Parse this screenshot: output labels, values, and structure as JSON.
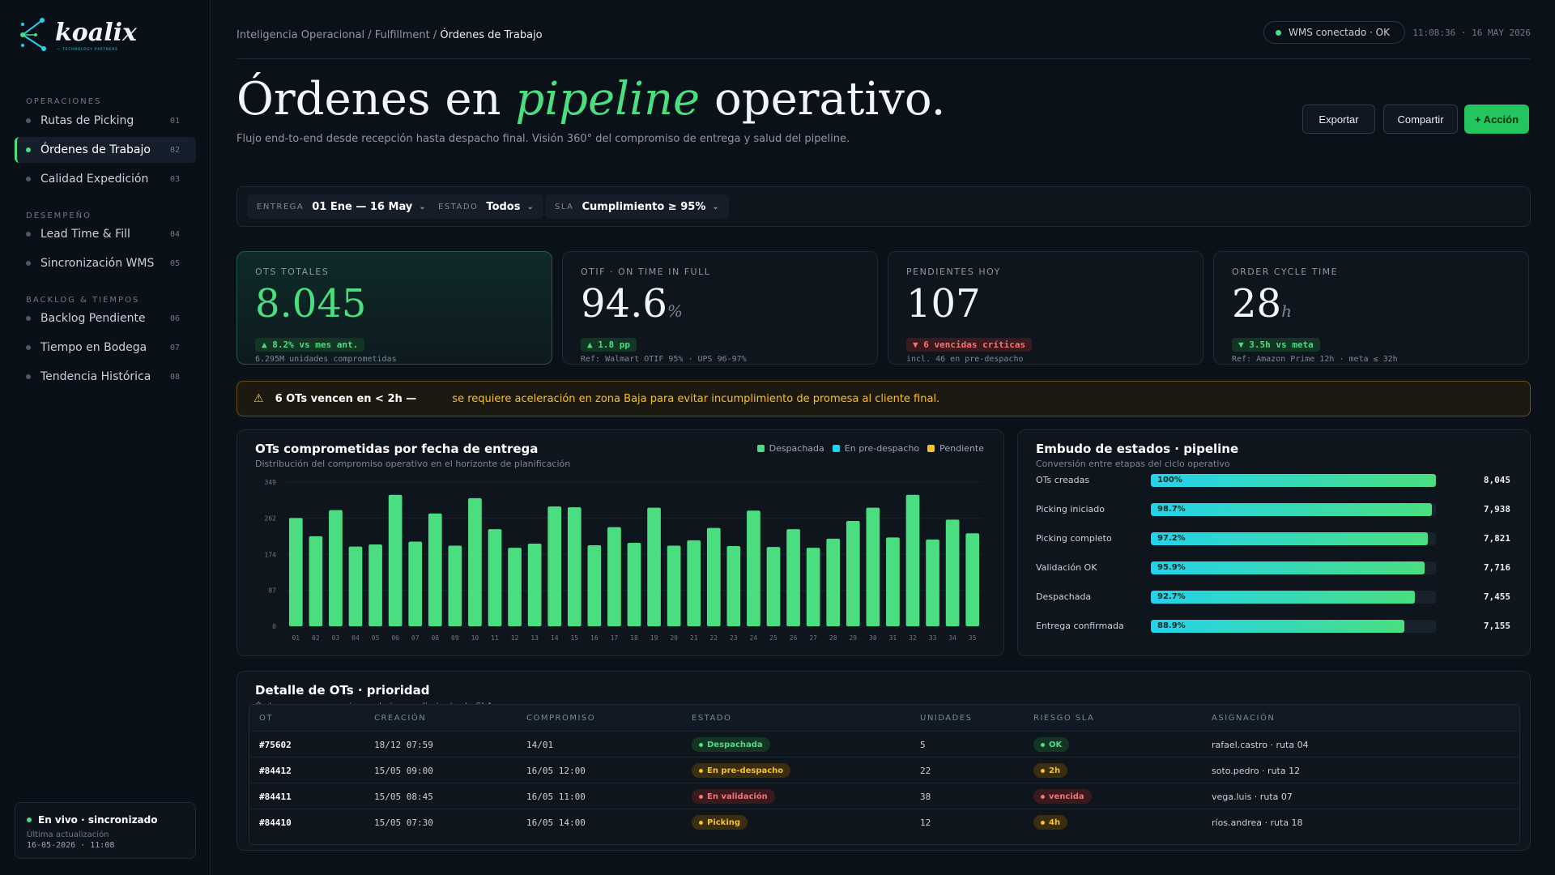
{
  "brand": {
    "name": "koalix",
    "tagline": "— TECHNOLOGY PARTNERS"
  },
  "sidebar": {
    "groups": [
      {
        "label": "OPERACIONES",
        "items": [
          {
            "label": "Rutas de Picking",
            "num": "01"
          },
          {
            "label": "Órdenes de Trabajo",
            "num": "02",
            "active": true
          },
          {
            "label": "Calidad Expedición",
            "num": "03"
          }
        ]
      },
      {
        "label": "DESEMPEÑO",
        "items": [
          {
            "label": "Lead Time & Fill",
            "num": "04"
          },
          {
            "label": "Sincronización WMS",
            "num": "05"
          }
        ]
      },
      {
        "label": "BACKLOG & TIEMPOS",
        "items": [
          {
            "label": "Backlog Pendiente",
            "num": "06"
          },
          {
            "label": "Tiempo en Bodega",
            "num": "07"
          },
          {
            "label": "Tendencia Histórica",
            "num": "08"
          }
        ]
      }
    ],
    "live": {
      "title": "En vivo · sincronizado",
      "sub": "Última actualización",
      "ts": "16-05-2026 · 11:08"
    }
  },
  "header": {
    "crumb_1": "Inteligencia Operacional / Fulfillment / ",
    "crumb_current": "Órdenes de Trabajo",
    "connection": "WMS conectado · OK",
    "clock": "11:08:36 · 16 MAY 2026",
    "title_a": "Órdenes en ",
    "title_hl": "pipeline",
    "title_b": " operativo.",
    "subtitle": "Flujo end-to-end desde recepción hasta despacho final. Visión 360° del compromiso de entrega y salud del pipeline.",
    "btn_export": "Exportar",
    "btn_share": "Compartir",
    "btn_action": "+ Acción"
  },
  "filters": [
    {
      "key": "ENTREGA",
      "value": "01 Ene — 16 May"
    },
    {
      "key": "ESTADO",
      "value": "Todos"
    },
    {
      "key": "SLA",
      "value": "Cumplimiento ≥ 95%"
    }
  ],
  "kpis": [
    {
      "label": "OTS TOTALES",
      "value": "8.045",
      "unit": "",
      "delta": "▲ 8.2% vs mes ant.",
      "dir": "up",
      "note": "6.295M unidades comprometidas"
    },
    {
      "label": "OTIF · ON TIME IN FULL",
      "value": "94.6",
      "unit": "%",
      "delta": "▲ 1.8 pp",
      "dir": "up",
      "note": "Ref: Walmart OTIF 95% · UPS 96-97%"
    },
    {
      "label": "PENDIENTES HOY",
      "value": "107",
      "unit": "",
      "delta": "▼ 6 vencidas críticas",
      "dir": "down",
      "note": "incl. 46 en pre-despacho"
    },
    {
      "label": "ORDER CYCLE TIME",
      "value": "28",
      "unit": "h",
      "delta": "▼ 3.5h vs meta",
      "dir": "up",
      "note": "Ref: Amazon Prime 12h · meta ≤ 32h"
    }
  ],
  "alert": {
    "bold": "6 OTs vencen en < 2h —",
    "text": "se requiere aceleración en zona Baja para evitar incumplimiento de promesa al cliente final."
  },
  "bar_panel": {
    "title": "OTs comprometidas por fecha de entrega",
    "subtitle": "Distribución del compromiso operativo en el horizonte de planificación",
    "legend": [
      {
        "name": "Despachada",
        "color": "#4ade80"
      },
      {
        "name": "En pre-despacho",
        "color": "#22d3ee"
      },
      {
        "name": "Pendiente",
        "color": "#fbbf24"
      }
    ]
  },
  "chart_data": {
    "type": "bar",
    "categories": [
      "01",
      "02",
      "03",
      "04",
      "05",
      "06",
      "07",
      "08",
      "09",
      "10",
      "11",
      "12",
      "13",
      "14",
      "15",
      "16",
      "17",
      "18",
      "19",
      "20",
      "21",
      "22",
      "23",
      "24",
      "25",
      "26",
      "27",
      "28",
      "29",
      "30",
      "31",
      "32",
      "33",
      "34",
      "35"
    ],
    "series": [
      {
        "name": "Despachada",
        "color": "#4ade80",
        "values": [
          262,
          218,
          281,
          193,
          198,
          318,
          205,
          273,
          195,
          310,
          235,
          190,
          200,
          290,
          288,
          196,
          240,
          202,
          287,
          195,
          208,
          238,
          194,
          280,
          192,
          235,
          190,
          212,
          255,
          287,
          215,
          318,
          210,
          258,
          225
        ]
      }
    ],
    "yticks": [
      0,
      87,
      174,
      262,
      349
    ],
    "ylim": [
      0,
      349
    ]
  },
  "funnel": {
    "title": "Embudo de estados · pipeline",
    "subtitle": "Conversión entre etapas del ciclo operativo",
    "stages": [
      {
        "label": "OTs creadas",
        "pct": 100,
        "pct_label": "100%",
        "count": "8,045"
      },
      {
        "label": "Picking iniciado",
        "pct": 98.7,
        "pct_label": "98.7%",
        "count": "7,938"
      },
      {
        "label": "Picking completo",
        "pct": 97.2,
        "pct_label": "97.2%",
        "count": "7,821"
      },
      {
        "label": "Validación OK",
        "pct": 95.9,
        "pct_label": "95.9%",
        "count": "7,716"
      },
      {
        "label": "Despachada",
        "pct": 92.7,
        "pct_label": "92.7%",
        "count": "7,455"
      },
      {
        "label": "Entrega confirmada",
        "pct": 88.9,
        "pct_label": "88.9%",
        "count": "7,155"
      }
    ]
  },
  "table": {
    "title": "Detalle de OTs · prioridad",
    "subtitle": "Órdenes con mayor riesgo de incumplimiento de SLA",
    "headers": [
      "OT",
      "CREACIÓN",
      "COMPROMISO",
      "ESTADO",
      "UNIDADES",
      "RIESGO SLA",
      "ASIGNACIÓN"
    ],
    "rows": [
      {
        "ot": "#75602",
        "creacion": "18/12 07:59",
        "compromiso": "14/01",
        "estado": "Despachada",
        "estado_tone": "green",
        "unidades": "5",
        "riesgo": "OK",
        "riesgo_tone": "green",
        "asignacion": "rafael.castro · ruta 04"
      },
      {
        "ot": "#84412",
        "creacion": "15/05 09:00",
        "compromiso": "16/05 12:00",
        "estado": "En pre-despacho",
        "estado_tone": "amber",
        "unidades": "22",
        "riesgo": "2h",
        "riesgo_tone": "amber",
        "asignacion": "soto.pedro · ruta 12"
      },
      {
        "ot": "#84411",
        "creacion": "15/05 08:45",
        "compromiso": "16/05 11:00",
        "estado": "En validación",
        "estado_tone": "red",
        "unidades": "38",
        "riesgo": "vencida",
        "riesgo_tone": "red",
        "asignacion": "vega.luis · ruta 07"
      },
      {
        "ot": "#84410",
        "creacion": "15/05 07:30",
        "compromiso": "16/05 14:00",
        "estado": "Picking",
        "estado_tone": "amber",
        "unidades": "12",
        "riesgo": "4h",
        "riesgo_tone": "amber",
        "asignacion": "ríos.andrea · ruta 18"
      }
    ]
  }
}
